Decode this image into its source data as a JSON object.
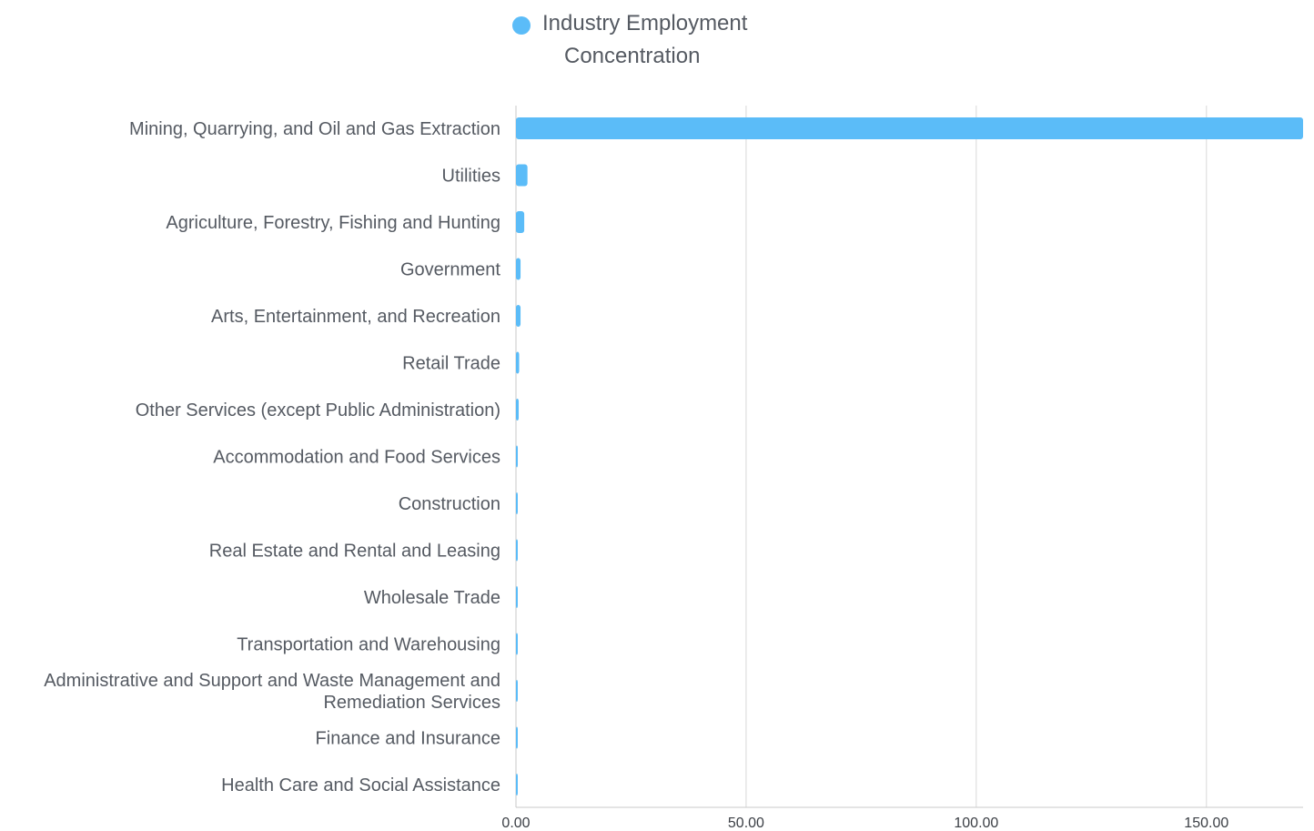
{
  "colors": {
    "bar": "#5bbcf8",
    "grid": "#d9d9d9",
    "axis": "#c9c9c9",
    "text": "#555a62",
    "tick_text": "#3b3f45"
  },
  "legend": {
    "icon": "circle-dot",
    "line1": "Industry Employment",
    "line2": "Concentration"
  },
  "chart_data": {
    "type": "bar",
    "orientation": "horizontal",
    "title": "",
    "xlabel": "",
    "ylabel": "",
    "legend_position": "top-center",
    "grid": true,
    "xlim": [
      0,
      171
    ],
    "xticks": [
      "0.00",
      "50.00",
      "100.00",
      "150.00"
    ],
    "xtick_values": [
      0,
      50,
      100,
      150
    ],
    "series": [
      {
        "name": "Industry Employment Concentration",
        "values": [
          171,
          2.5,
          1.8,
          1.0,
          1.0,
          0.7,
          0.6,
          0.4,
          0.35,
          0.3,
          0.3,
          0.3,
          0.2,
          0.15,
          0.1
        ]
      }
    ],
    "categories": [
      "Mining, Quarrying, and Oil and Gas Extraction",
      "Utilities",
      "Agriculture, Forestry, Fishing and Hunting",
      "Government",
      "Arts, Entertainment, and Recreation",
      "Retail Trade",
      "Other Services (except Public Administration)",
      "Accommodation and Food Services",
      "Construction",
      "Real Estate and Rental and Leasing",
      "Wholesale Trade",
      "Transportation and Warehousing",
      "Administrative and Support and Waste Management and Remediation Services",
      "Finance and Insurance",
      "Health Care and Social Assistance"
    ],
    "category_lines": [
      [
        "Mining, Quarrying, and Oil and Gas Extraction"
      ],
      [
        "Utilities"
      ],
      [
        "Agriculture, Forestry, Fishing and Hunting"
      ],
      [
        "Government"
      ],
      [
        "Arts, Entertainment, and Recreation"
      ],
      [
        "Retail Trade"
      ],
      [
        "Other Services (except Public Administration)"
      ],
      [
        "Accommodation and Food Services"
      ],
      [
        "Construction"
      ],
      [
        "Real Estate and Rental and Leasing"
      ],
      [
        "Wholesale Trade"
      ],
      [
        "Transportation and Warehousing"
      ],
      [
        "Administrative and Support and Waste Management and",
        "Remediation Services"
      ],
      [
        "Finance and Insurance"
      ],
      [
        "Health Care and Social Assistance"
      ]
    ]
  }
}
